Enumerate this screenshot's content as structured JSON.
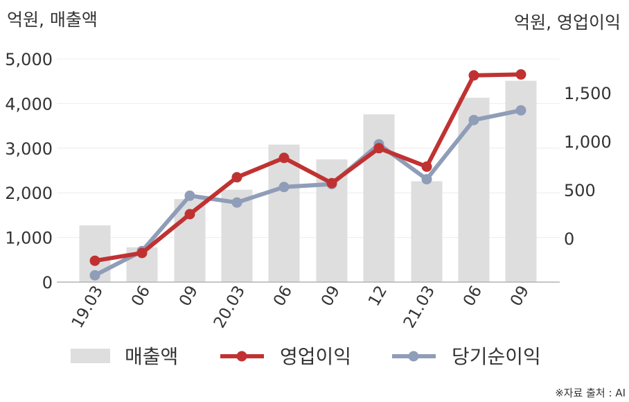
{
  "chart_data": {
    "type": "bar+line",
    "left_axis_label": "억원, 매출액",
    "right_axis_label": "억원, 영업이익",
    "categories": [
      "19.03",
      "06",
      "09",
      "20.03",
      "06",
      "09",
      "12",
      "21.03",
      "06",
      "09"
    ],
    "left_ticks": [
      "5,000",
      "4,000",
      "3,000",
      "2,000",
      "1,000",
      "0"
    ],
    "left_tick_values": [
      5000,
      4000,
      3000,
      2000,
      1000,
      0
    ],
    "right_ticks": [
      "1,500",
      "1,000",
      "500",
      "0"
    ],
    "right_tick_values": [
      1500,
      1000,
      500,
      0
    ],
    "ylim_left": [
      0,
      5000
    ],
    "ylim_right": [
      -450,
      1850
    ],
    "grid": true,
    "legend_position": "bottom",
    "series": [
      {
        "name": "매출액",
        "kind": "bar",
        "axis": "left",
        "color": "#dedede",
        "values": [
          1270,
          780,
          1860,
          2070,
          3080,
          2750,
          3760,
          2260,
          4130,
          4510
        ]
      },
      {
        "name": "영업이익",
        "kind": "line",
        "axis": "right",
        "color": "#c03232",
        "values": [
          -230,
          -150,
          250,
          630,
          830,
          570,
          930,
          740,
          1680,
          1690
        ]
      },
      {
        "name": "당기순이익",
        "kind": "line",
        "axis": "right",
        "color": "#8f9db8",
        "values": [
          -380,
          -130,
          440,
          370,
          530,
          560,
          970,
          610,
          1220,
          1320
        ]
      }
    ],
    "source_note": "※자료 출처 : AI"
  }
}
